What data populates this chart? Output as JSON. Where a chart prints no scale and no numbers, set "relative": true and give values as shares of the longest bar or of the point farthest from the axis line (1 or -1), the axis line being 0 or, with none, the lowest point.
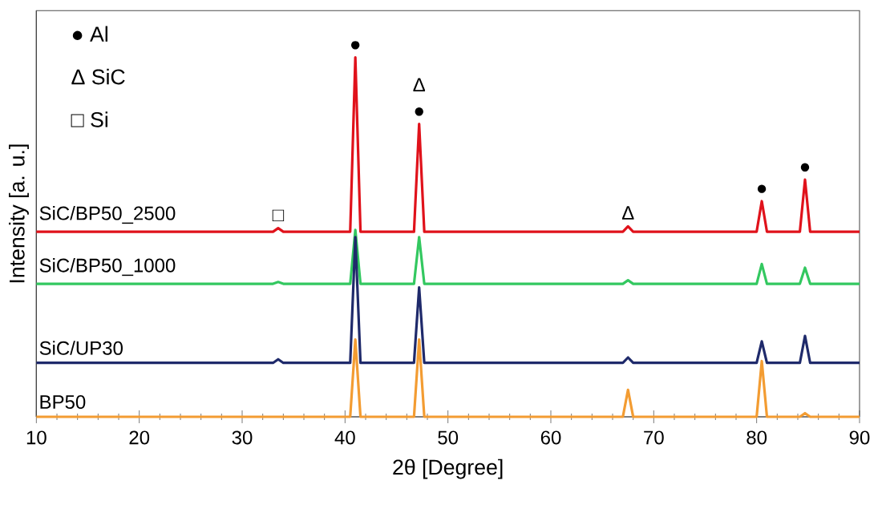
{
  "chart_data": {
    "type": "line",
    "relative": true,
    "xlabel": "2θ [Degree]",
    "ylabel": "Intensity [a. u.]",
    "xlim": [
      10,
      90
    ],
    "xticks": [
      10,
      20,
      30,
      40,
      50,
      60,
      70,
      80,
      90
    ],
    "tick_labels": "x",
    "grid": false,
    "legend": false,
    "marker": "none",
    "line_style": "solid",
    "x": [
      10,
      33.0,
      33.5,
      34.0,
      40.5,
      41.0,
      41.5,
      46.7,
      47.2,
      47.7,
      67.0,
      67.5,
      68.0,
      80.0,
      80.5,
      81.0,
      84.2,
      84.7,
      85.2,
      90
    ],
    "series": [
      {
        "name": "SiC/BP50_2500",
        "color": "#e0121b",
        "values": [
          0.515,
          0.515,
          0.525,
          0.515,
          0.515,
          1.0,
          0.515,
          0.515,
          0.815,
          0.515,
          0.515,
          0.53,
          0.515,
          0.515,
          0.6,
          0.515,
          0.515,
          0.66,
          0.515,
          0.515
        ]
      },
      {
        "name": "SiC/BP50_1000",
        "color": "#33c860",
        "values": [
          0.37,
          0.37,
          0.375,
          0.37,
          0.37,
          0.52,
          0.37,
          0.37,
          0.5,
          0.37,
          0.37,
          0.38,
          0.37,
          0.37,
          0.425,
          0.37,
          0.37,
          0.415,
          0.37,
          0.37
        ]
      },
      {
        "name": "SiC/UP30",
        "color": "#1f2a6b",
        "values": [
          0.15,
          0.15,
          0.16,
          0.15,
          0.15,
          0.5,
          0.15,
          0.15,
          0.36,
          0.15,
          0.15,
          0.165,
          0.15,
          0.15,
          0.21,
          0.15,
          0.15,
          0.225,
          0.15,
          0.15
        ]
      },
      {
        "name": "BP50",
        "color": "#f39c32",
        "values": [
          0,
          0,
          0,
          0,
          0,
          0.215,
          0,
          0,
          0.215,
          0,
          0,
          0.075,
          0,
          0,
          0.155,
          0,
          0,
          0.01,
          0,
          0
        ]
      }
    ],
    "annotations": [
      "● Al",
      "Δ SiC",
      "□ Si",
      {
        "text": "□",
        "x": 33.5,
        "y": 0.525
      },
      {
        "text": "●",
        "x": 41.0,
        "y": 1.0
      },
      {
        "text": "●",
        "x": 47.2,
        "y": 0.815
      },
      {
        "text": "Δ",
        "x": 47.2,
        "y": 0.815
      },
      {
        "text": "Δ",
        "x": 67.5,
        "y": 0.53
      },
      {
        "text": "●",
        "x": 80.5,
        "y": 0.6
      },
      {
        "text": "●",
        "x": 84.7,
        "y": 0.66
      }
    ]
  }
}
